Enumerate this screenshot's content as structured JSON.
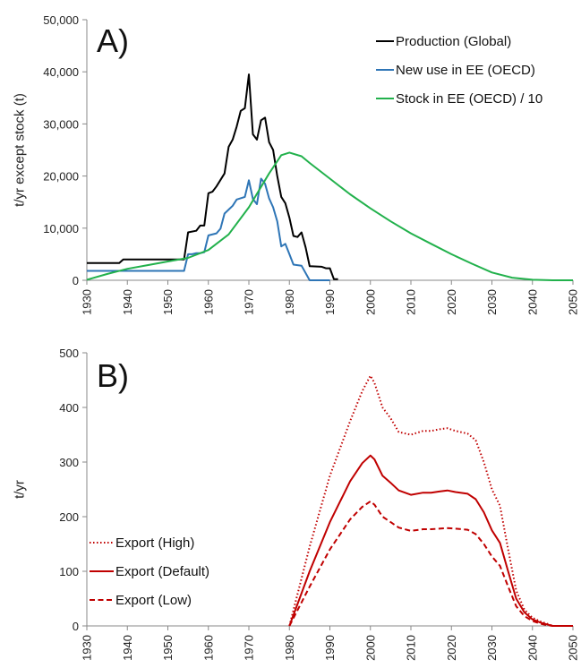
{
  "chart_data": [
    {
      "panel": "A)",
      "type": "line",
      "ylabel": "t/yr except stock (t)",
      "xlim": [
        1930,
        2050
      ],
      "ylim": [
        0,
        50000
      ],
      "x_ticks": [
        "1930",
        "1940",
        "1950",
        "1960",
        "1970",
        "1980",
        "1990",
        "2000",
        "2010",
        "2020",
        "2030",
        "2040",
        "2050"
      ],
      "y_ticks": [
        "0",
        "10,000",
        "20,000",
        "30,000",
        "40,000",
        "50,000"
      ],
      "y_tick_values": [
        0,
        10000,
        20000,
        30000,
        40000,
        50000
      ],
      "legend_position": "top-right",
      "series": [
        {
          "name": "Production (Global)",
          "color": "#000000",
          "style": "solid",
          "points": [
            [
              1930,
              3300
            ],
            [
              1938,
              3300
            ],
            [
              1939,
              4000
            ],
            [
              1954,
              4000
            ],
            [
              1955,
              9200
            ],
            [
              1957,
              9500
            ],
            [
              1958,
              10500
            ],
            [
              1959,
              10500
            ],
            [
              1960,
              16700
            ],
            [
              1961,
              17000
            ],
            [
              1962,
              18000
            ],
            [
              1964,
              20500
            ],
            [
              1965,
              25600
            ],
            [
              1966,
              27000
            ],
            [
              1967,
              29500
            ],
            [
              1968,
              32500
            ],
            [
              1969,
              33000
            ],
            [
              1970,
              39500
            ],
            [
              1971,
              28000
            ],
            [
              1972,
              27000
            ],
            [
              1973,
              30700
            ],
            [
              1974,
              31200
            ],
            [
              1975,
              26500
            ],
            [
              1976,
              25000
            ],
            [
              1977,
              20000
            ],
            [
              1978,
              16000
            ],
            [
              1979,
              14800
            ],
            [
              1980,
              12000
            ],
            [
              1981,
              8500
            ],
            [
              1982,
              8300
            ],
            [
              1983,
              9200
            ],
            [
              1984,
              6300
            ],
            [
              1985,
              2700
            ],
            [
              1988,
              2600
            ],
            [
              1989,
              2300
            ],
            [
              1990,
              2300
            ],
            [
              1991,
              200
            ],
            [
              1992,
              200
            ]
          ]
        },
        {
          "name": "New use in EE (OECD)",
          "color": "#2e75b6",
          "style": "solid",
          "points": [
            [
              1930,
              1800
            ],
            [
              1954,
              1800
            ],
            [
              1955,
              5000
            ],
            [
              1956,
              5000
            ],
            [
              1957,
              5200
            ],
            [
              1958,
              5200
            ],
            [
              1959,
              5400
            ],
            [
              1960,
              8600
            ],
            [
              1962,
              9000
            ],
            [
              1963,
              9900
            ],
            [
              1964,
              12800
            ],
            [
              1966,
              14300
            ],
            [
              1967,
              15500
            ],
            [
              1969,
              16000
            ],
            [
              1970,
              19200
            ],
            [
              1971,
              15600
            ],
            [
              1972,
              14600
            ],
            [
              1973,
              19500
            ],
            [
              1974,
              18500
            ],
            [
              1975,
              15700
            ],
            [
              1976,
              14000
            ],
            [
              1977,
              11300
            ],
            [
              1978,
              6500
            ],
            [
              1979,
              7000
            ],
            [
              1980,
              5000
            ],
            [
              1981,
              3000
            ],
            [
              1983,
              2800
            ],
            [
              1985,
              0
            ],
            [
              1990,
              0
            ]
          ]
        },
        {
          "name": "Stock in EE (OECD) / 10",
          "color": "#22b14c",
          "style": "solid",
          "points": [
            [
              1930,
              100
            ],
            [
              1935,
              1200
            ],
            [
              1940,
              2200
            ],
            [
              1945,
              2900
            ],
            [
              1950,
              3600
            ],
            [
              1955,
              4300
            ],
            [
              1960,
              5800
            ],
            [
              1965,
              8800
            ],
            [
              1970,
              14000
            ],
            [
              1975,
              20500
            ],
            [
              1978,
              24000
            ],
            [
              1980,
              24500
            ],
            [
              1983,
              23800
            ],
            [
              1985,
              22500
            ],
            [
              1990,
              19500
            ],
            [
              1995,
              16500
            ],
            [
              2000,
              13800
            ],
            [
              2005,
              11300
            ],
            [
              2010,
              9000
            ],
            [
              2015,
              7000
            ],
            [
              2020,
              5000
            ],
            [
              2025,
              3200
            ],
            [
              2030,
              1500
            ],
            [
              2035,
              500
            ],
            [
              2040,
              100
            ],
            [
              2045,
              0
            ],
            [
              2050,
              0
            ]
          ]
        }
      ]
    },
    {
      "panel": "B)",
      "type": "line",
      "ylabel": "t/yr",
      "xlim": [
        1930,
        2050
      ],
      "ylim": [
        0,
        500
      ],
      "x_ticks": [
        "1930",
        "1940",
        "1950",
        "1960",
        "1970",
        "1980",
        "1990",
        "2000",
        "2010",
        "2020",
        "2030",
        "2040",
        "2050"
      ],
      "y_ticks": [
        "0",
        "100",
        "200",
        "300",
        "400",
        "500"
      ],
      "y_tick_values": [
        0,
        100,
        200,
        300,
        400,
        500
      ],
      "legend_position": "bottom-left",
      "series": [
        {
          "name": "Export (High)",
          "color": "#c00000",
          "style": "dotted",
          "points": [
            [
              1980,
              0
            ],
            [
              1985,
              145
            ],
            [
              1990,
              275
            ],
            [
              1995,
              375
            ],
            [
              1998,
              430
            ],
            [
              2000,
              458
            ],
            [
              2001,
              445
            ],
            [
              2003,
              400
            ],
            [
              2005,
              380
            ],
            [
              2007,
              355
            ],
            [
              2010,
              350
            ],
            [
              2013,
              357
            ],
            [
              2015,
              357
            ],
            [
              2017,
              360
            ],
            [
              2019,
              362
            ],
            [
              2021,
              357
            ],
            [
              2024,
              352
            ],
            [
              2026,
              340
            ],
            [
              2028,
              300
            ],
            [
              2030,
              250
            ],
            [
              2032,
              220
            ],
            [
              2034,
              140
            ],
            [
              2036,
              65
            ],
            [
              2038,
              30
            ],
            [
              2040,
              15
            ],
            [
              2042,
              8
            ],
            [
              2044,
              3
            ],
            [
              2045,
              0
            ],
            [
              2050,
              0
            ]
          ]
        },
        {
          "name": "Export (Default)",
          "color": "#c00000",
          "style": "solid",
          "points": [
            [
              1980,
              0
            ],
            [
              1985,
              100
            ],
            [
              1990,
              190
            ],
            [
              1995,
              265
            ],
            [
              1998,
              298
            ],
            [
              2000,
              312
            ],
            [
              2001,
              305
            ],
            [
              2003,
              275
            ],
            [
              2005,
              262
            ],
            [
              2007,
              248
            ],
            [
              2010,
              240
            ],
            [
              2013,
              244
            ],
            [
              2015,
              244
            ],
            [
              2017,
              246
            ],
            [
              2019,
              248
            ],
            [
              2021,
              245
            ],
            [
              2024,
              242
            ],
            [
              2026,
              232
            ],
            [
              2028,
              208
            ],
            [
              2030,
              175
            ],
            [
              2032,
              152
            ],
            [
              2034,
              100
            ],
            [
              2036,
              50
            ],
            [
              2038,
              25
            ],
            [
              2040,
              12
            ],
            [
              2042,
              6
            ],
            [
              2044,
              2
            ],
            [
              2045,
              0
            ],
            [
              2050,
              0
            ]
          ]
        },
        {
          "name": "Export (Low)",
          "color": "#c00000",
          "style": "dashed",
          "points": [
            [
              1980,
              0
            ],
            [
              1985,
              72
            ],
            [
              1990,
              140
            ],
            [
              1995,
              195
            ],
            [
              1998,
              218
            ],
            [
              2000,
              228
            ],
            [
              2001,
              222
            ],
            [
              2003,
              200
            ],
            [
              2005,
              190
            ],
            [
              2007,
              180
            ],
            [
              2010,
              174
            ],
            [
              2013,
              177
            ],
            [
              2015,
              177
            ],
            [
              2017,
              178
            ],
            [
              2019,
              179
            ],
            [
              2021,
              178
            ],
            [
              2024,
              176
            ],
            [
              2026,
              168
            ],
            [
              2028,
              150
            ],
            [
              2030,
              127
            ],
            [
              2032,
              110
            ],
            [
              2034,
              72
            ],
            [
              2036,
              36
            ],
            [
              2038,
              18
            ],
            [
              2040,
              9
            ],
            [
              2042,
              4
            ],
            [
              2044,
              1
            ],
            [
              2045,
              0
            ],
            [
              2050,
              0
            ]
          ]
        }
      ]
    }
  ]
}
